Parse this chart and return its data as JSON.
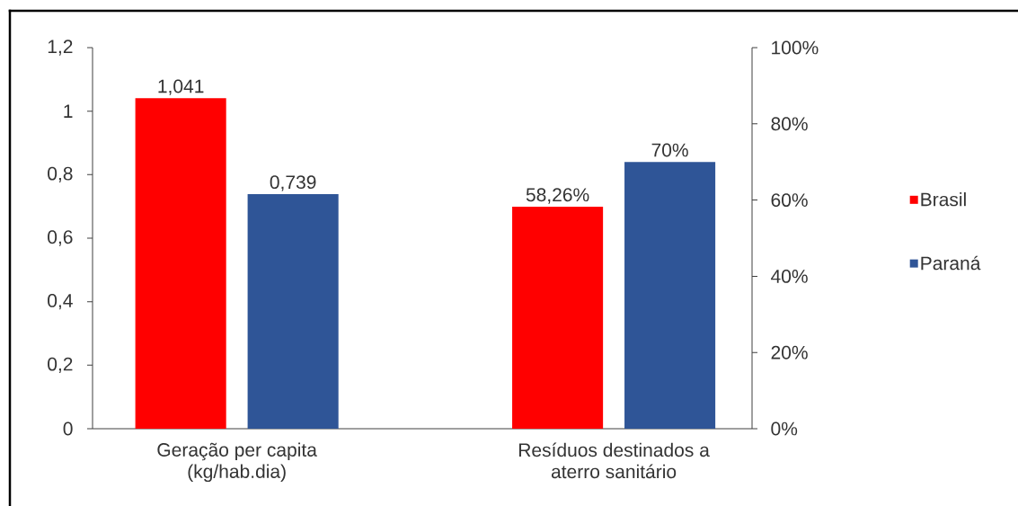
{
  "chart_data": {
    "type": "bar",
    "categories": [
      "Geração per capita (kg/hab.dia)",
      "Resíduos destinados a aterro sanitário"
    ],
    "series": [
      {
        "name": "Brasil",
        "color": "#ff0000",
        "values": [
          1.041,
          null
        ],
        "value_labels": [
          "1,041",
          null
        ]
      },
      {
        "name": "Paraná",
        "color": "#2f5597",
        "values": [
          0.739,
          null
        ],
        "value_labels": [
          "0,739",
          null
        ]
      },
      {
        "color": "#ff0000",
        "axis": "y2",
        "values": [
          null,
          58.26
        ],
        "value_labels": [
          null,
          "58,26%"
        ]
      },
      {
        "color": "#2f5597",
        "axis": "y2",
        "values": [
          null,
          70
        ],
        "value_labels": [
          null,
          "70%"
        ]
      }
    ],
    "ylim": [
      0,
      1.2
    ],
    "yticks": [
      0,
      {
        "value": 0.2,
        "label": "0,2"
      },
      {
        "value": 0.4,
        "label": "0,4"
      },
      {
        "value": 0.6,
        "label": "0,6"
      },
      {
        "value": 0.8,
        "label": "0,8"
      },
      1,
      {
        "value": 1.2,
        "label": "1,2"
      }
    ],
    "y2lim": [
      0,
      100
    ],
    "y2ticks": [
      {
        "value": 0,
        "label": "0%"
      },
      {
        "value": 20,
        "label": "20%"
      },
      {
        "value": 40,
        "label": "40%"
      },
      {
        "value": 60,
        "label": "60%"
      },
      {
        "value": 80,
        "label": "80%"
      },
      {
        "value": 100,
        "label": "100%"
      }
    ],
    "legend": "right"
  }
}
